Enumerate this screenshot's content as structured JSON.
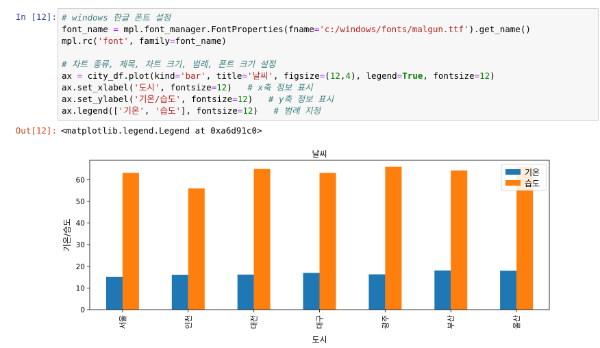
{
  "cells": {
    "in_prompt": "In [12]:",
    "out_prompt": "Out[12]:",
    "output_text": "<matplotlib.legend.Legend at 0xa6d91c0>"
  },
  "code": {
    "l1": "# windows 한글 폰트 설정",
    "l2_a": "font_name ",
    "l2_b": "=",
    "l2_c": " mpl.font_manager.FontProperties(fname",
    "l2_d": "=",
    "l2_e": "'c:/windows/fonts/malgun.ttf'",
    "l2_f": ").get_name()",
    "l3_a": "mpl.rc(",
    "l3_b": "'font'",
    "l3_c": ", family",
    "l3_d": "=",
    "l3_e": "font_name)",
    "l5": "# 차트 종류, 제목, 차트 크기, 범례, 폰트 크기 설정",
    "l6_a": "ax ",
    "l6_b": "=",
    "l6_c": " city_df.plot(kind",
    "l6_d": "=",
    "l6_e": "'bar'",
    "l6_f": ", title",
    "l6_g": "=",
    "l6_h": "'날씨'",
    "l6_i": ", figsize",
    "l6_j": "=",
    "l6_k": "(",
    "l6_l": "12",
    "l6_m": ",",
    "l6_n": "4",
    "l6_o": "), legend",
    "l6_p": "=",
    "l6_q": "True",
    "l6_r": ", fontsize",
    "l6_s": "=",
    "l6_t": "12",
    "l6_u": ")",
    "l7_a": "ax.set_xlabel(",
    "l7_b": "'도시'",
    "l7_c": ", fontsize",
    "l7_d": "=",
    "l7_e": "12",
    "l7_f": ")   ",
    "l7_g": "# x축 정보 표시",
    "l8_a": "ax.set_ylabel(",
    "l8_b": "'기온/습도'",
    "l8_c": ", fontsize",
    "l8_d": "=",
    "l8_e": "12",
    "l8_f": ")   ",
    "l8_g": "# y축 정보 표시",
    "l9_a": "ax.legend([",
    "l9_b": "'기온'",
    "l9_c": ", ",
    "l9_d": "'습도'",
    "l9_e": "], fontsize",
    "l9_f": "=",
    "l9_g": "12",
    "l9_h": ")   ",
    "l9_i": "# 범례 지정"
  },
  "chart_data": {
    "type": "bar",
    "title": "날씨",
    "xlabel": "도시",
    "ylabel": "기온/습도",
    "categories": [
      "서울",
      "인천",
      "대전",
      "대구",
      "광주",
      "부산",
      "울산"
    ],
    "series": [
      {
        "name": "기온",
        "color": "#1f77b4",
        "values": [
          15.2,
          16.1,
          16.2,
          17.0,
          16.3,
          18.1,
          18.0
        ]
      },
      {
        "name": "습도",
        "color": "#ff7f0e",
        "values": [
          63.2,
          56.0,
          65.0,
          63.2,
          66.0,
          64.3,
          66.0
        ]
      }
    ],
    "ylim": [
      0,
      69
    ],
    "yticks": [
      "0",
      "10",
      "20",
      "30",
      "40",
      "50",
      "60"
    ],
    "legend_position": "top-right",
    "grid": false
  }
}
